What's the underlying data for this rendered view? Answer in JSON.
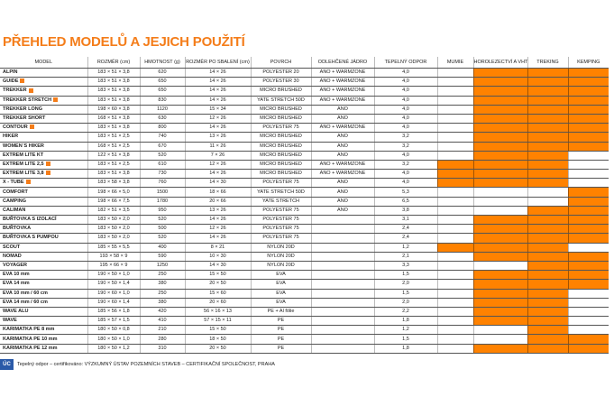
{
  "title": "PŘEHLED MODELŮ A JEJICH POUŽITÍ",
  "colors": {
    "accent": "#ff8200",
    "title": "#f47d1a"
  },
  "columns": [
    "MODEL",
    "ROZMĚR (cm)",
    "HMOTNOST (g)",
    "ROZMĚR PO SBALENÍ (cm)",
    "POVRCH",
    "ODLEHČENÉ JÁDRO",
    "TEPELNÝ ODPOR",
    "MUMIE",
    "HOROLEZECTVÍ A VHT",
    "TREKING",
    "KEMPING"
  ],
  "rows": [
    {
      "model": "ALPIN",
      "badge": false,
      "size": "183 × 51 × 3,8",
      "weight": "620",
      "packed": "14 × 26",
      "surface": "POLYESTER 20",
      "core": "ANO + WARMZONE",
      "r": "4,0",
      "use": [
        0,
        1,
        1,
        1
      ]
    },
    {
      "model": "GUIDE",
      "badge": true,
      "size": "183 × 51 × 3,8",
      "weight": "650",
      "packed": "14 × 26",
      "surface": "POLYESTER 30",
      "core": "ANO + WARMZONE",
      "r": "4,0",
      "use": [
        0,
        1,
        1,
        1
      ]
    },
    {
      "model": "TREKKER",
      "badge": true,
      "size": "183 × 51 × 3,8",
      "weight": "650",
      "packed": "14 × 26",
      "surface": "MICRO BRUSHED",
      "core": "ANO + WARMZONE",
      "r": "4,0",
      "use": [
        0,
        1,
        1,
        1
      ]
    },
    {
      "model": "TREKKER STRETCH",
      "badge": true,
      "size": "183 × 51 × 3,8",
      "weight": "830",
      "packed": "14 × 26",
      "surface": "YATE STRETCH 50D",
      "core": "ANO + WARMZONE",
      "r": "4,0",
      "use": [
        0,
        1,
        1,
        1
      ]
    },
    {
      "model": "TREKKER LONG",
      "badge": false,
      "size": "198 × 60 × 3,8",
      "weight": "1120",
      "packed": "15 × 34",
      "surface": "MICRO BRUSHED",
      "core": "ANO",
      "r": "4,0",
      "use": [
        0,
        1,
        1,
        1
      ]
    },
    {
      "model": "TREKKER SHORT",
      "badge": false,
      "size": "168 × 51 × 3,8",
      "weight": "630",
      "packed": "12 × 26",
      "surface": "MICRO BRUSHED",
      "core": "ANO",
      "r": "4,0",
      "use": [
        0,
        1,
        1,
        1
      ]
    },
    {
      "model": "CONTOUR",
      "badge": true,
      "size": "183 × 51 × 3,8",
      "weight": "800",
      "packed": "14 × 26",
      "surface": "POLYESTER 75",
      "core": "ANO + WARMZONE",
      "r": "4,0",
      "use": [
        0,
        1,
        1,
        1
      ]
    },
    {
      "model": "HIKER",
      "badge": false,
      "size": "183 × 51 × 2,5",
      "weight": "740",
      "packed": "13 × 26",
      "surface": "MICRO BRUSHED",
      "core": "ANO",
      "r": "3,2",
      "use": [
        0,
        1,
        1,
        1
      ]
    },
    {
      "model": "WOMEN´S HIKER",
      "badge": false,
      "size": "168 × 51 × 2,5",
      "weight": "670",
      "packed": "11 × 26",
      "surface": "MICRO BRUSHED",
      "core": "ANO",
      "r": "3,2",
      "use": [
        0,
        1,
        1,
        1
      ]
    },
    {
      "model": "EXTREM LITE KT",
      "badge": false,
      "size": "122 × 51 × 3,8",
      "weight": "520",
      "packed": "7 × 26",
      "surface": "MICRO BRUSHED",
      "core": "ANO",
      "r": "4,0",
      "use": [
        0,
        1,
        1,
        0
      ]
    },
    {
      "model": "EXTREM LITE 2,5",
      "badge": true,
      "size": "183 × 51 × 2,5",
      "weight": "610",
      "packed": "12 × 26",
      "surface": "MICRO BRUSHED",
      "core": "ANO + WARMZONE",
      "r": "3,2",
      "use": [
        1,
        1,
        1,
        0
      ]
    },
    {
      "model": "EXTREM LITE 3,8",
      "badge": true,
      "size": "183 × 51 × 3,8",
      "weight": "730",
      "packed": "14 × 26",
      "surface": "MICRO BRUSHED",
      "core": "ANO + WARMZONE",
      "r": "4,0",
      "use": [
        1,
        1,
        1,
        0
      ]
    },
    {
      "model": "X - TUBE",
      "badge": true,
      "size": "183 × 58 × 3,8",
      "weight": "760",
      "packed": "14 × 30",
      "surface": "POLYESTER 75",
      "core": "ANO",
      "r": "4,0",
      "use": [
        1,
        1,
        1,
        0
      ]
    },
    {
      "model": "COMFORT",
      "badge": false,
      "size": "198 × 66 × 5,0",
      "weight": "1500",
      "packed": "18 × 66",
      "surface": "YATE STRETCH 50D",
      "core": "ANO",
      "r": "5,3",
      "use": [
        0,
        0,
        0,
        1
      ]
    },
    {
      "model": "CAMPING",
      "badge": false,
      "size": "198 × 66 × 7,5",
      "weight": "1780",
      "packed": "20 × 66",
      "surface": "YATE STRETCH",
      "core": "ANO",
      "r": "6,5",
      "use": [
        0,
        0,
        0,
        1
      ]
    },
    {
      "model": "CALIMAN",
      "badge": false,
      "size": "182 × 51 × 3,5",
      "weight": "950",
      "packed": "13 × 26",
      "surface": "POLYESTER 75",
      "core": "ANO",
      "r": "3,8",
      "use": [
        0,
        0,
        1,
        1
      ]
    },
    {
      "model": "BUŘTOVKA S IZOLACÍ",
      "badge": false,
      "size": "183 × 50 × 2,0",
      "weight": "520",
      "packed": "14 × 26",
      "surface": "POLYESTER 75",
      "core": "",
      "r": "3,1",
      "use": [
        0,
        1,
        1,
        1
      ]
    },
    {
      "model": "BUŘTOVKA",
      "badge": false,
      "size": "183 × 50 × 2,0",
      "weight": "500",
      "packed": "12 × 26",
      "surface": "POLYESTER 75",
      "core": "",
      "r": "2,4",
      "use": [
        0,
        1,
        1,
        1
      ]
    },
    {
      "model": "BUŘTOVKA S PUMPOU",
      "badge": false,
      "size": "183 × 50 × 2,0",
      "weight": "520",
      "packed": "14 × 26",
      "surface": "POLYESTER 75",
      "core": "",
      "r": "2,4",
      "use": [
        0,
        1,
        1,
        1
      ]
    },
    {
      "model": "SCOUT",
      "badge": false,
      "size": "185 × 55 × 5,5",
      "weight": "400",
      "packed": "8 × 21",
      "surface": "NYLON 20D",
      "core": "",
      "r": "1,2",
      "use": [
        1,
        1,
        1,
        0
      ]
    },
    {
      "model": "NOMAD",
      "badge": false,
      "size": "193 × 58 × 9",
      "weight": "590",
      "packed": "10 × 30",
      "surface": "NYLON 20D",
      "core": "",
      "r": "2,1",
      "use": [
        0,
        1,
        1,
        1
      ]
    },
    {
      "model": "VOYAGER",
      "badge": false,
      "size": "195 × 66 × 9",
      "weight": "1250",
      "packed": "14 × 30",
      "surface": "NYLON 20D",
      "core": "",
      "r": "3,3",
      "use": [
        0,
        0,
        1,
        1
      ]
    },
    {
      "model": "EVA 10 mm",
      "badge": false,
      "size": "190 × 50 × 1,0",
      "weight": "250",
      "packed": "15 × 50",
      "surface": "EVA",
      "core": "",
      "r": "1,5",
      "use": [
        0,
        1,
        1,
        1
      ]
    },
    {
      "model": "EVA 14 mm",
      "badge": false,
      "size": "190 × 50 × 1,4",
      "weight": "380",
      "packed": "20 × 50",
      "surface": "EVA",
      "core": "",
      "r": "2,0",
      "use": [
        0,
        1,
        1,
        1
      ]
    },
    {
      "model": "EVA 10 mm / 60 cm",
      "badge": false,
      "size": "190 × 60 × 1,0",
      "weight": "250",
      "packed": "15 × 60",
      "surface": "EVA",
      "core": "",
      "r": "1,5",
      "use": [
        0,
        1,
        1,
        0
      ]
    },
    {
      "model": "EVA 14 mm / 60 cm",
      "badge": false,
      "size": "190 × 60 × 1,4",
      "weight": "380",
      "packed": "20 × 60",
      "surface": "EVA",
      "core": "",
      "r": "2,0",
      "use": [
        0,
        1,
        1,
        0
      ]
    },
    {
      "model": "WAVE ALU",
      "badge": false,
      "size": "185 × 56 × 1,8",
      "weight": "420",
      "packed": "56 × 16 × 13",
      "surface": "PE + Al fólie",
      "core": "",
      "r": "2,2",
      "use": [
        0,
        1,
        1,
        0
      ]
    },
    {
      "model": "WAVE",
      "badge": false,
      "size": "185 × 57 × 1,5",
      "weight": "410",
      "packed": "57 × 15 × 11",
      "surface": "PE",
      "core": "",
      "r": "1,8",
      "use": [
        0,
        1,
        1,
        0
      ]
    },
    {
      "model": "KARIMATKA PE 8 mm",
      "badge": false,
      "size": "180 × 50 × 0,8",
      "weight": "210",
      "packed": "15 × 50",
      "surface": "PE",
      "core": "",
      "r": "1,2",
      "use": [
        0,
        0,
        1,
        0
      ]
    },
    {
      "model": "KARIMATKA PE 10 mm",
      "badge": false,
      "size": "180 × 50 × 1,0",
      "weight": "280",
      "packed": "18 × 50",
      "surface": "PE",
      "core": "",
      "r": "1,5",
      "use": [
        0,
        0,
        1,
        1
      ]
    },
    {
      "model": "KARIMATKA PE 12 mm",
      "badge": false,
      "size": "180 × 50 × 1,2",
      "weight": "310",
      "packed": "20 × 50",
      "surface": "PE",
      "core": "",
      "r": "1,8",
      "use": [
        0,
        1,
        1,
        1
      ]
    }
  ],
  "footer": {
    "logo": "ÚC",
    "text": "Tepelný odpor – certifikováno: VÝZKUMNÝ ÚSTAV POZEMNÍCH STAVEB – CERTIFIKAČNÍ SPOLEČNOST, PRAHA"
  }
}
